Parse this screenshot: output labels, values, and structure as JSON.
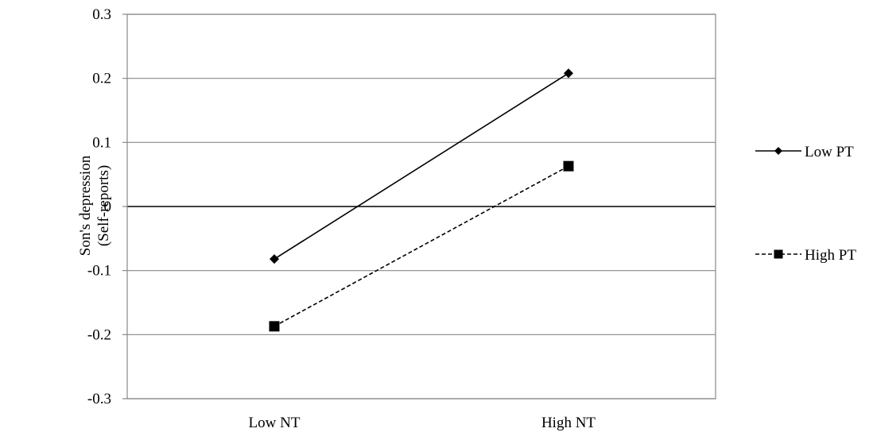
{
  "chart_data": {
    "type": "line",
    "categories": [
      "Low NT",
      "High NT"
    ],
    "series": [
      {
        "name": "Low PT",
        "values": [
          -0.082,
          0.208
        ],
        "marker": "diamond",
        "line_style": "solid",
        "color": "#000000"
      },
      {
        "name": "High PT",
        "values": [
          -0.187,
          0.063
        ],
        "marker": "square",
        "line_style": "dashed",
        "color": "#000000"
      }
    ],
    "ylabel": [
      "Son's depression",
      "(Self-reports)"
    ],
    "xlabel": "",
    "ylim": [
      -0.3,
      0.3
    ],
    "yticks": [
      0.3,
      0.2,
      0.1,
      0,
      -0.1,
      -0.2,
      -0.3
    ],
    "ytick_labels": [
      "0.3",
      "0.2",
      "0.1",
      "0",
      "-0.1",
      "-0.2",
      "-0.3"
    ],
    "grid": true,
    "legend_position": "right"
  }
}
